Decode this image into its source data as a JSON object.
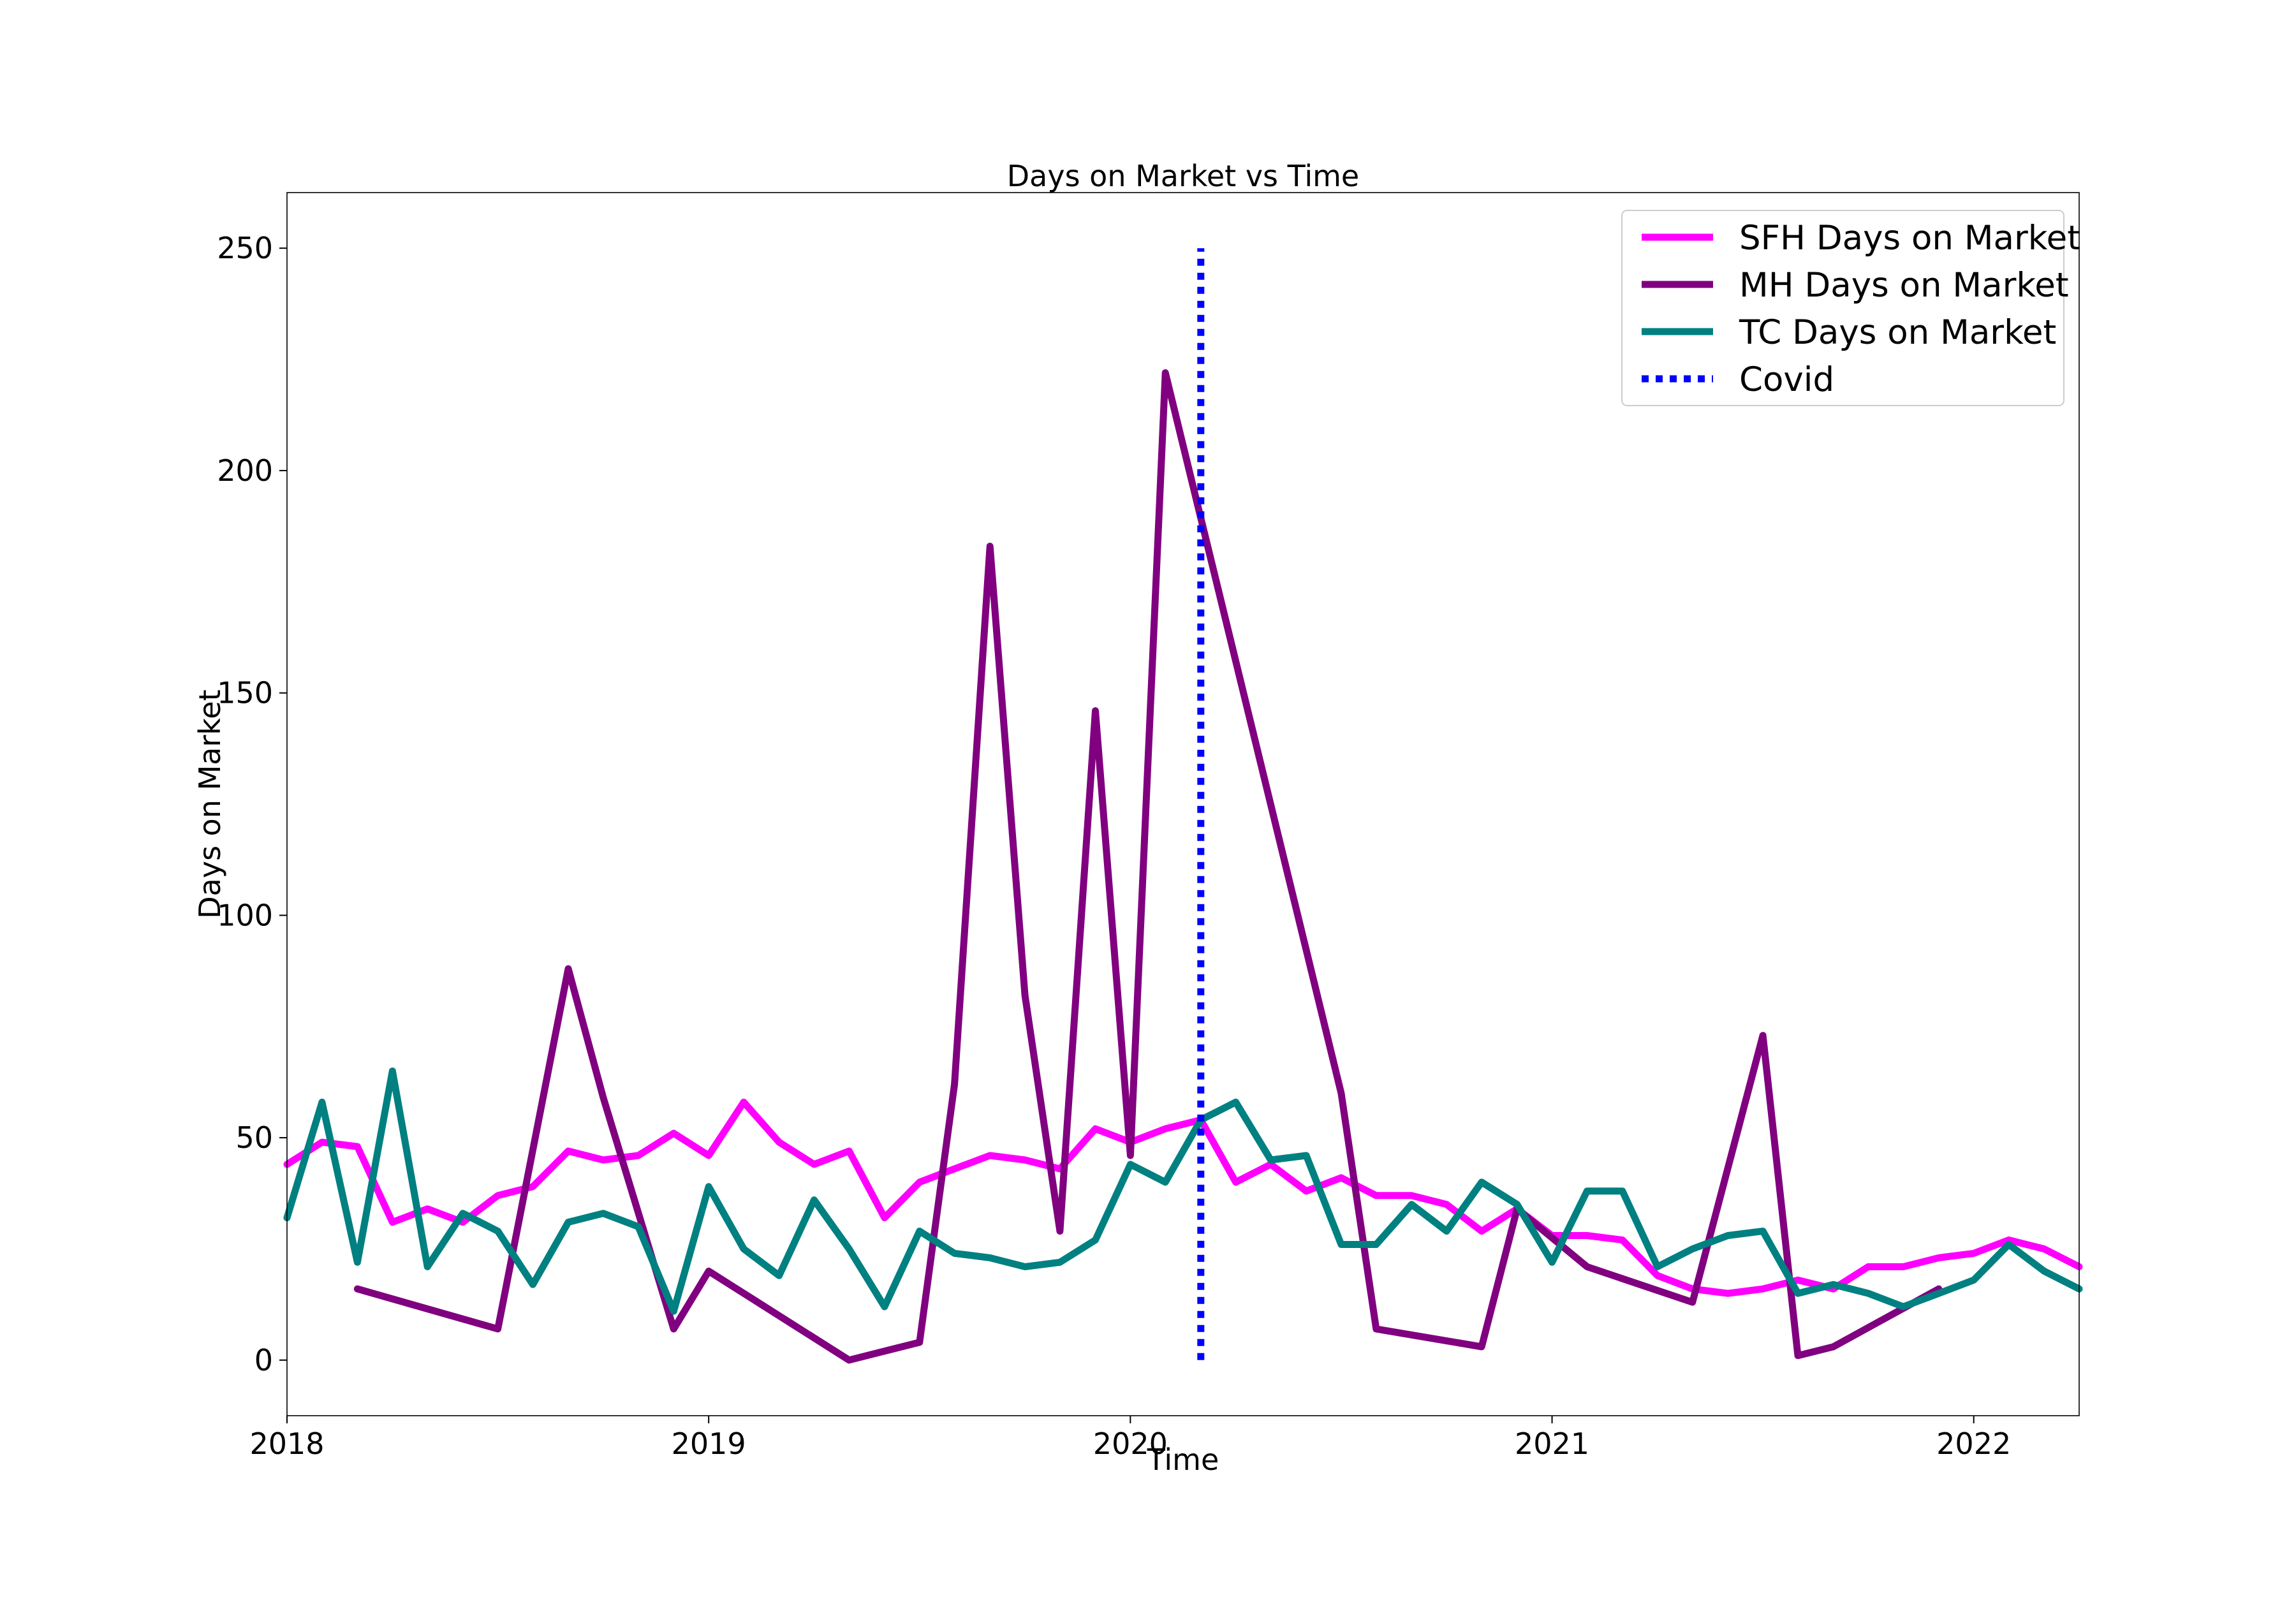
{
  "chart_data": {
    "type": "line",
    "title": "Days on Market vs Time",
    "xlabel": "Time",
    "ylabel": "Days on Market",
    "xlim": [
      2018.0,
      2022.25
    ],
    "ylim": [
      -12.5,
      262.5
    ],
    "xticks": [
      2018,
      2019,
      2020,
      2021,
      2022
    ],
    "xtick_labels": [
      "2018",
      "2019",
      "2020",
      "2021",
      "2022"
    ],
    "yticks": [
      0,
      50,
      100,
      150,
      200,
      250
    ],
    "ytick_labels": [
      "0",
      "50",
      "100",
      "150",
      "200",
      "250"
    ],
    "legend_position": "top-right",
    "series": [
      {
        "name": "SFH Days on Market",
        "color": "#ff00ff",
        "style": "solid",
        "x": [
          2018.0,
          2018.083,
          2018.167,
          2018.25,
          2018.333,
          2018.417,
          2018.5,
          2018.583,
          2018.667,
          2018.75,
          2018.833,
          2018.917,
          2019.0,
          2019.083,
          2019.167,
          2019.25,
          2019.333,
          2019.417,
          2019.5,
          2019.583,
          2019.667,
          2019.75,
          2019.833,
          2019.917,
          2020.0,
          2020.083,
          2020.167,
          2020.25,
          2020.333,
          2020.417,
          2020.5,
          2020.583,
          2020.667,
          2020.75,
          2020.833,
          2020.917,
          2021.0,
          2021.083,
          2021.167,
          2021.25,
          2021.333,
          2021.417,
          2021.5,
          2021.583,
          2021.667,
          2021.75,
          2021.833,
          2021.917,
          2022.0,
          2022.083,
          2022.167,
          2022.25
        ],
        "values": [
          44,
          49,
          48,
          31,
          34,
          31,
          37,
          39,
          47,
          45,
          46,
          51,
          46,
          58,
          49,
          44,
          47,
          32,
          40,
          43,
          46,
          45,
          43,
          52,
          49,
          52,
          54,
          40,
          44,
          38,
          41,
          37,
          37,
          35,
          29,
          34,
          28,
          28,
          27,
          19,
          16,
          15,
          16,
          18,
          16,
          21,
          21,
          23,
          24,
          27,
          25,
          21
        ]
      },
      {
        "name": "MH Days on Market",
        "color": "#800080",
        "style": "solid",
        "x": [
          2018.167,
          2018.5,
          2018.667,
          2018.75,
          2018.917,
          2019.0,
          2019.333,
          2019.5,
          2019.583,
          2019.667,
          2019.75,
          2019.833,
          2019.917,
          2020.0,
          2020.083,
          2020.5,
          2020.583,
          2020.833,
          2020.917,
          2021.083,
          2021.333,
          2021.5,
          2021.583,
          2021.667,
          2021.917
        ],
        "values": [
          16,
          7,
          88,
          59,
          7,
          20,
          0,
          4,
          62,
          183,
          82,
          29,
          146,
          46,
          222,
          60,
          7,
          3,
          34,
          21,
          13,
          73,
          1,
          3,
          16
        ]
      },
      {
        "name": "TC Days on Market",
        "color": "#008080",
        "style": "solid",
        "x": [
          2018.0,
          2018.083,
          2018.167,
          2018.25,
          2018.333,
          2018.417,
          2018.5,
          2018.583,
          2018.667,
          2018.75,
          2018.833,
          2018.917,
          2019.0,
          2019.083,
          2019.167,
          2019.25,
          2019.333,
          2019.417,
          2019.5,
          2019.583,
          2019.667,
          2019.75,
          2019.833,
          2019.917,
          2020.0,
          2020.083,
          2020.167,
          2020.25,
          2020.333,
          2020.417,
          2020.5,
          2020.583,
          2020.667,
          2020.75,
          2020.833,
          2020.917,
          2021.0,
          2021.083,
          2021.167,
          2021.25,
          2021.333,
          2021.417,
          2021.5,
          2021.583,
          2021.667,
          2021.75,
          2021.833,
          2021.917,
          2022.0,
          2022.083,
          2022.167,
          2022.25
        ],
        "values": [
          32,
          58,
          22,
          65,
          21,
          33,
          29,
          17,
          31,
          33,
          30,
          11,
          39,
          25,
          19,
          36,
          25,
          12,
          29,
          24,
          23,
          21,
          22,
          27,
          44,
          40,
          54,
          58,
          45,
          46,
          26,
          26,
          35,
          29,
          40,
          35,
          22,
          38,
          38,
          21,
          25,
          28,
          29,
          15,
          17,
          15,
          12,
          15,
          18,
          26,
          20,
          16
        ]
      },
      {
        "name": "Covid",
        "color": "#0000ff",
        "style": "dotted",
        "x": [
          2020.167,
          2020.167
        ],
        "values": [
          0,
          250
        ]
      }
    ]
  }
}
